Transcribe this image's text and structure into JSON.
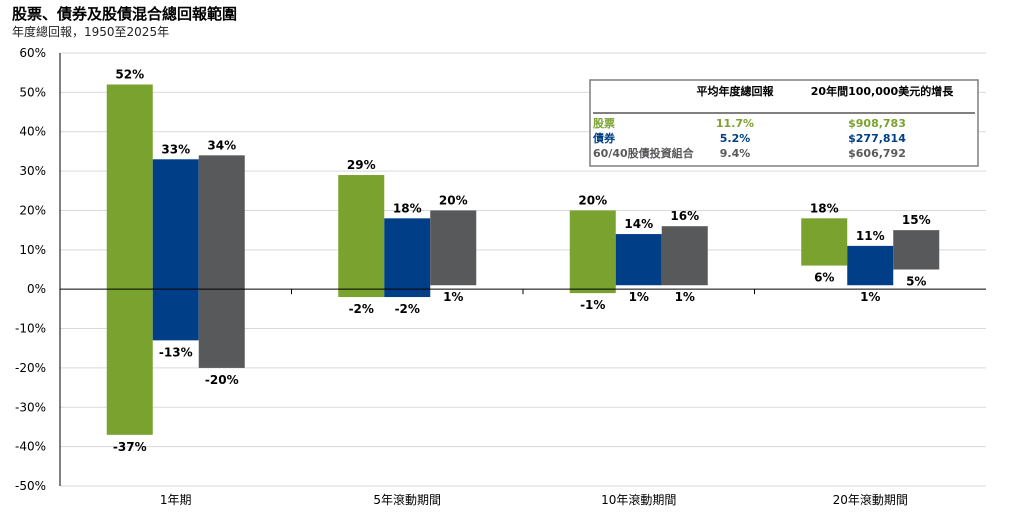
{
  "chart_data": {
    "type": "bar",
    "title": "股票、債券及股債混合總回報範圍",
    "subtitle": "年度總回報，1950至2025年",
    "ylim": [
      -50,
      60
    ],
    "yticks": [
      -50,
      -40,
      -30,
      -20,
      -10,
      0,
      10,
      20,
      30,
      40,
      50,
      60
    ],
    "ytick_labels": [
      "-50%",
      "-40%",
      "-30%",
      "-20%",
      "-10%",
      "0%",
      "10%",
      "20%",
      "30%",
      "40%",
      "50%",
      "60%"
    ],
    "grid": true,
    "categories": [
      "1年期",
      "5年滾動期間",
      "10年滾動期間",
      "20年滾動期間"
    ],
    "series": [
      {
        "name": "股票",
        "color": "#7aa22f",
        "max": [
          52,
          29,
          20,
          18
        ],
        "min": [
          -37,
          -2,
          -1,
          6
        ],
        "max_labels": [
          "52%",
          "29%",
          "20%",
          "18%"
        ],
        "min_labels": [
          "-37%",
          "-2%",
          "-1%",
          "6%"
        ]
      },
      {
        "name": "債券",
        "color": "#003f87",
        "max": [
          33,
          18,
          14,
          11
        ],
        "min": [
          -13,
          -2,
          1,
          1
        ],
        "max_labels": [
          "33%",
          "18%",
          "14%",
          "11%"
        ],
        "min_labels": [
          "-13%",
          "-2%",
          "1%",
          "1%"
        ]
      },
      {
        "name": "60/40股債投資組合",
        "color": "#58595b",
        "max": [
          34,
          20,
          16,
          15
        ],
        "min": [
          -20,
          1,
          1,
          5
        ],
        "max_labels": [
          "34%",
          "20%",
          "16%",
          "15%"
        ],
        "min_labels": [
          "-20%",
          "1%",
          "1%",
          "5%"
        ]
      }
    ],
    "legend_table": {
      "position": "top-right",
      "headers": [
        "平均年度總回報",
        "20年間100,000美元的增長"
      ],
      "rows": [
        {
          "label": "股票",
          "avg": "11.7%",
          "growth": "$908,783",
          "color": "#7aa22f"
        },
        {
          "label": "債券",
          "avg": "5.2%",
          "growth": "$277,814",
          "color": "#003f87"
        },
        {
          "label": "60/40股債投資組合",
          "avg": "9.4%",
          "growth": "$606,792",
          "color": "#58595b"
        }
      ]
    }
  }
}
